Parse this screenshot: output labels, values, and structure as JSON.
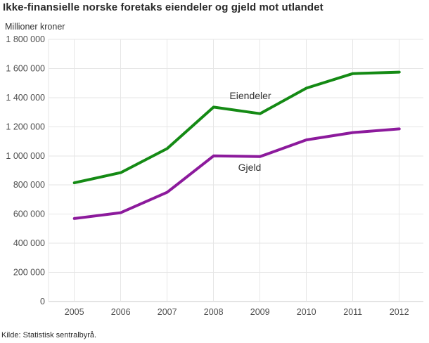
{
  "header": {
    "title": "Ikke-finansielle norske foretaks eiendeler og gjeld mot utlandet"
  },
  "chart_data": {
    "type": "line",
    "title": "Ikke-finansielle norske foretaks eiendeler og gjeld mot utlandet",
    "y_axis_title": "Millioner kroner",
    "xlabel": "",
    "ylabel": "Millioner kroner",
    "categories": [
      "2005",
      "2006",
      "2007",
      "2008",
      "2009",
      "2010",
      "2011",
      "2012"
    ],
    "series": [
      {
        "name": "Eiendeler",
        "color": "#148a14",
        "values": [
          815000,
          885000,
          1050000,
          1335000,
          1290000,
          1465000,
          1565000,
          1575000
        ]
      },
      {
        "name": "Gjeld",
        "color": "#8c1a9c",
        "values": [
          570000,
          610000,
          750000,
          1000000,
          995000,
          1110000,
          1160000,
          1185000
        ]
      }
    ],
    "ylim": [
      0,
      1800000
    ],
    "y_tick_step": 200000,
    "y_tick_labels": [
      "0",
      "200 000",
      "400 000",
      "600 000",
      "800 000",
      "1 000 000",
      "1 200 000",
      "1 400 000",
      "1 600 000",
      "1 800 000"
    ],
    "grid": true,
    "legend_position": "inline-labels",
    "colors": {
      "gridline": "#e6e6e6",
      "axis_line": "#c9c9c9",
      "tick_label": "#4d4d4d",
      "series_label": "#333333"
    }
  },
  "footer": {
    "source": "Kilde: Statistisk sentralbyrå."
  }
}
